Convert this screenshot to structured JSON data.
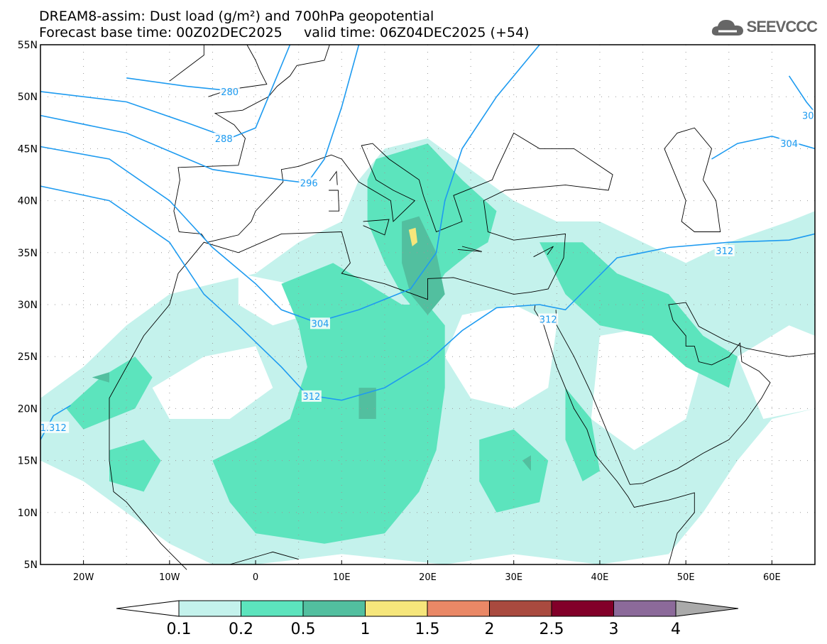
{
  "header": {
    "title": "DREAM8-assim: Dust load (g/m²) and 700hPa geopotential",
    "forecast_base": "Forecast base time: 00Z02DEC2025",
    "valid_time": "valid time: 06Z04DEC2025 (+54)"
  },
  "logo": {
    "text": "SEEVCCC"
  },
  "map": {
    "lon_range": [
      -25,
      65
    ],
    "lat_range": [
      5,
      55
    ],
    "lat_labels": [
      "5N",
      "10N",
      "15N",
      "20N",
      "25N",
      "30N",
      "35N",
      "40N",
      "45N",
      "50N",
      "55N"
    ],
    "lon_labels": [
      "20W",
      "10W",
      "0",
      "10E",
      "20E",
      "30E",
      "40E",
      "50E",
      "60E"
    ],
    "contour_labels": [
      "280",
      "288",
      "296",
      "304",
      "312",
      "312",
      "312",
      "312",
      "304",
      "30",
      "1.312"
    ],
    "contour_color": "#1e9bf0"
  },
  "colorbar": {
    "ticks": [
      "0.1",
      "0.2",
      "0.5",
      "1",
      "1.5",
      "2",
      "2.5",
      "3",
      "4"
    ],
    "colors": [
      "#ffffff",
      "#c4f2ec",
      "#5ce4bd",
      "#52bf9f",
      "#f6e67b",
      "#ea8866",
      "#a94a3f",
      "#820029",
      "#8c6a9a",
      "#aaaaaa"
    ]
  }
}
